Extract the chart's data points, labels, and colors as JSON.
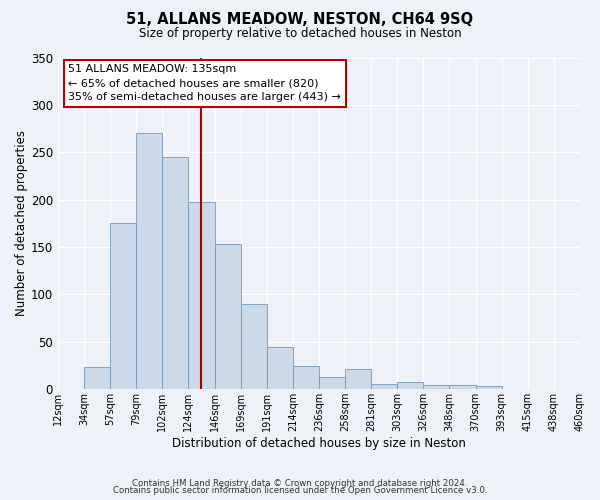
{
  "title": "51, ALLANS MEADOW, NESTON, CH64 9SQ",
  "subtitle": "Size of property relative to detached houses in Neston",
  "xlabel": "Distribution of detached houses by size in Neston",
  "ylabel": "Number of detached properties",
  "bar_color": "#ccd9e8",
  "bar_edge_color": "#7799bb",
  "background_color": "#eef2f8",
  "grid_color": "#ffffff",
  "bin_labels": [
    "12sqm",
    "34sqm",
    "57sqm",
    "79sqm",
    "102sqm",
    "124sqm",
    "146sqm",
    "169sqm",
    "191sqm",
    "214sqm",
    "236sqm",
    "258sqm",
    "281sqm",
    "303sqm",
    "326sqm",
    "348sqm",
    "370sqm",
    "393sqm",
    "415sqm",
    "438sqm",
    "460sqm"
  ],
  "values": [
    0,
    24,
    175,
    270,
    245,
    198,
    153,
    90,
    45,
    25,
    13,
    21,
    6,
    8,
    5,
    4,
    3,
    0,
    0,
    0
  ],
  "ylim": [
    0,
    350
  ],
  "yticks": [
    0,
    50,
    100,
    150,
    200,
    250,
    300,
    350
  ],
  "vline_index": 5.5,
  "vline_color": "#aa0000",
  "annotation_text": "51 ALLANS MEADOW: 135sqm\n← 65% of detached houses are smaller (820)\n35% of semi-detached houses are larger (443) →",
  "annotation_box_color": "#ffffff",
  "annotation_box_edge_color": "#bb0000",
  "footer_line1": "Contains HM Land Registry data © Crown copyright and database right 2024.",
  "footer_line2": "Contains public sector information licensed under the Open Government Licence v3.0."
}
